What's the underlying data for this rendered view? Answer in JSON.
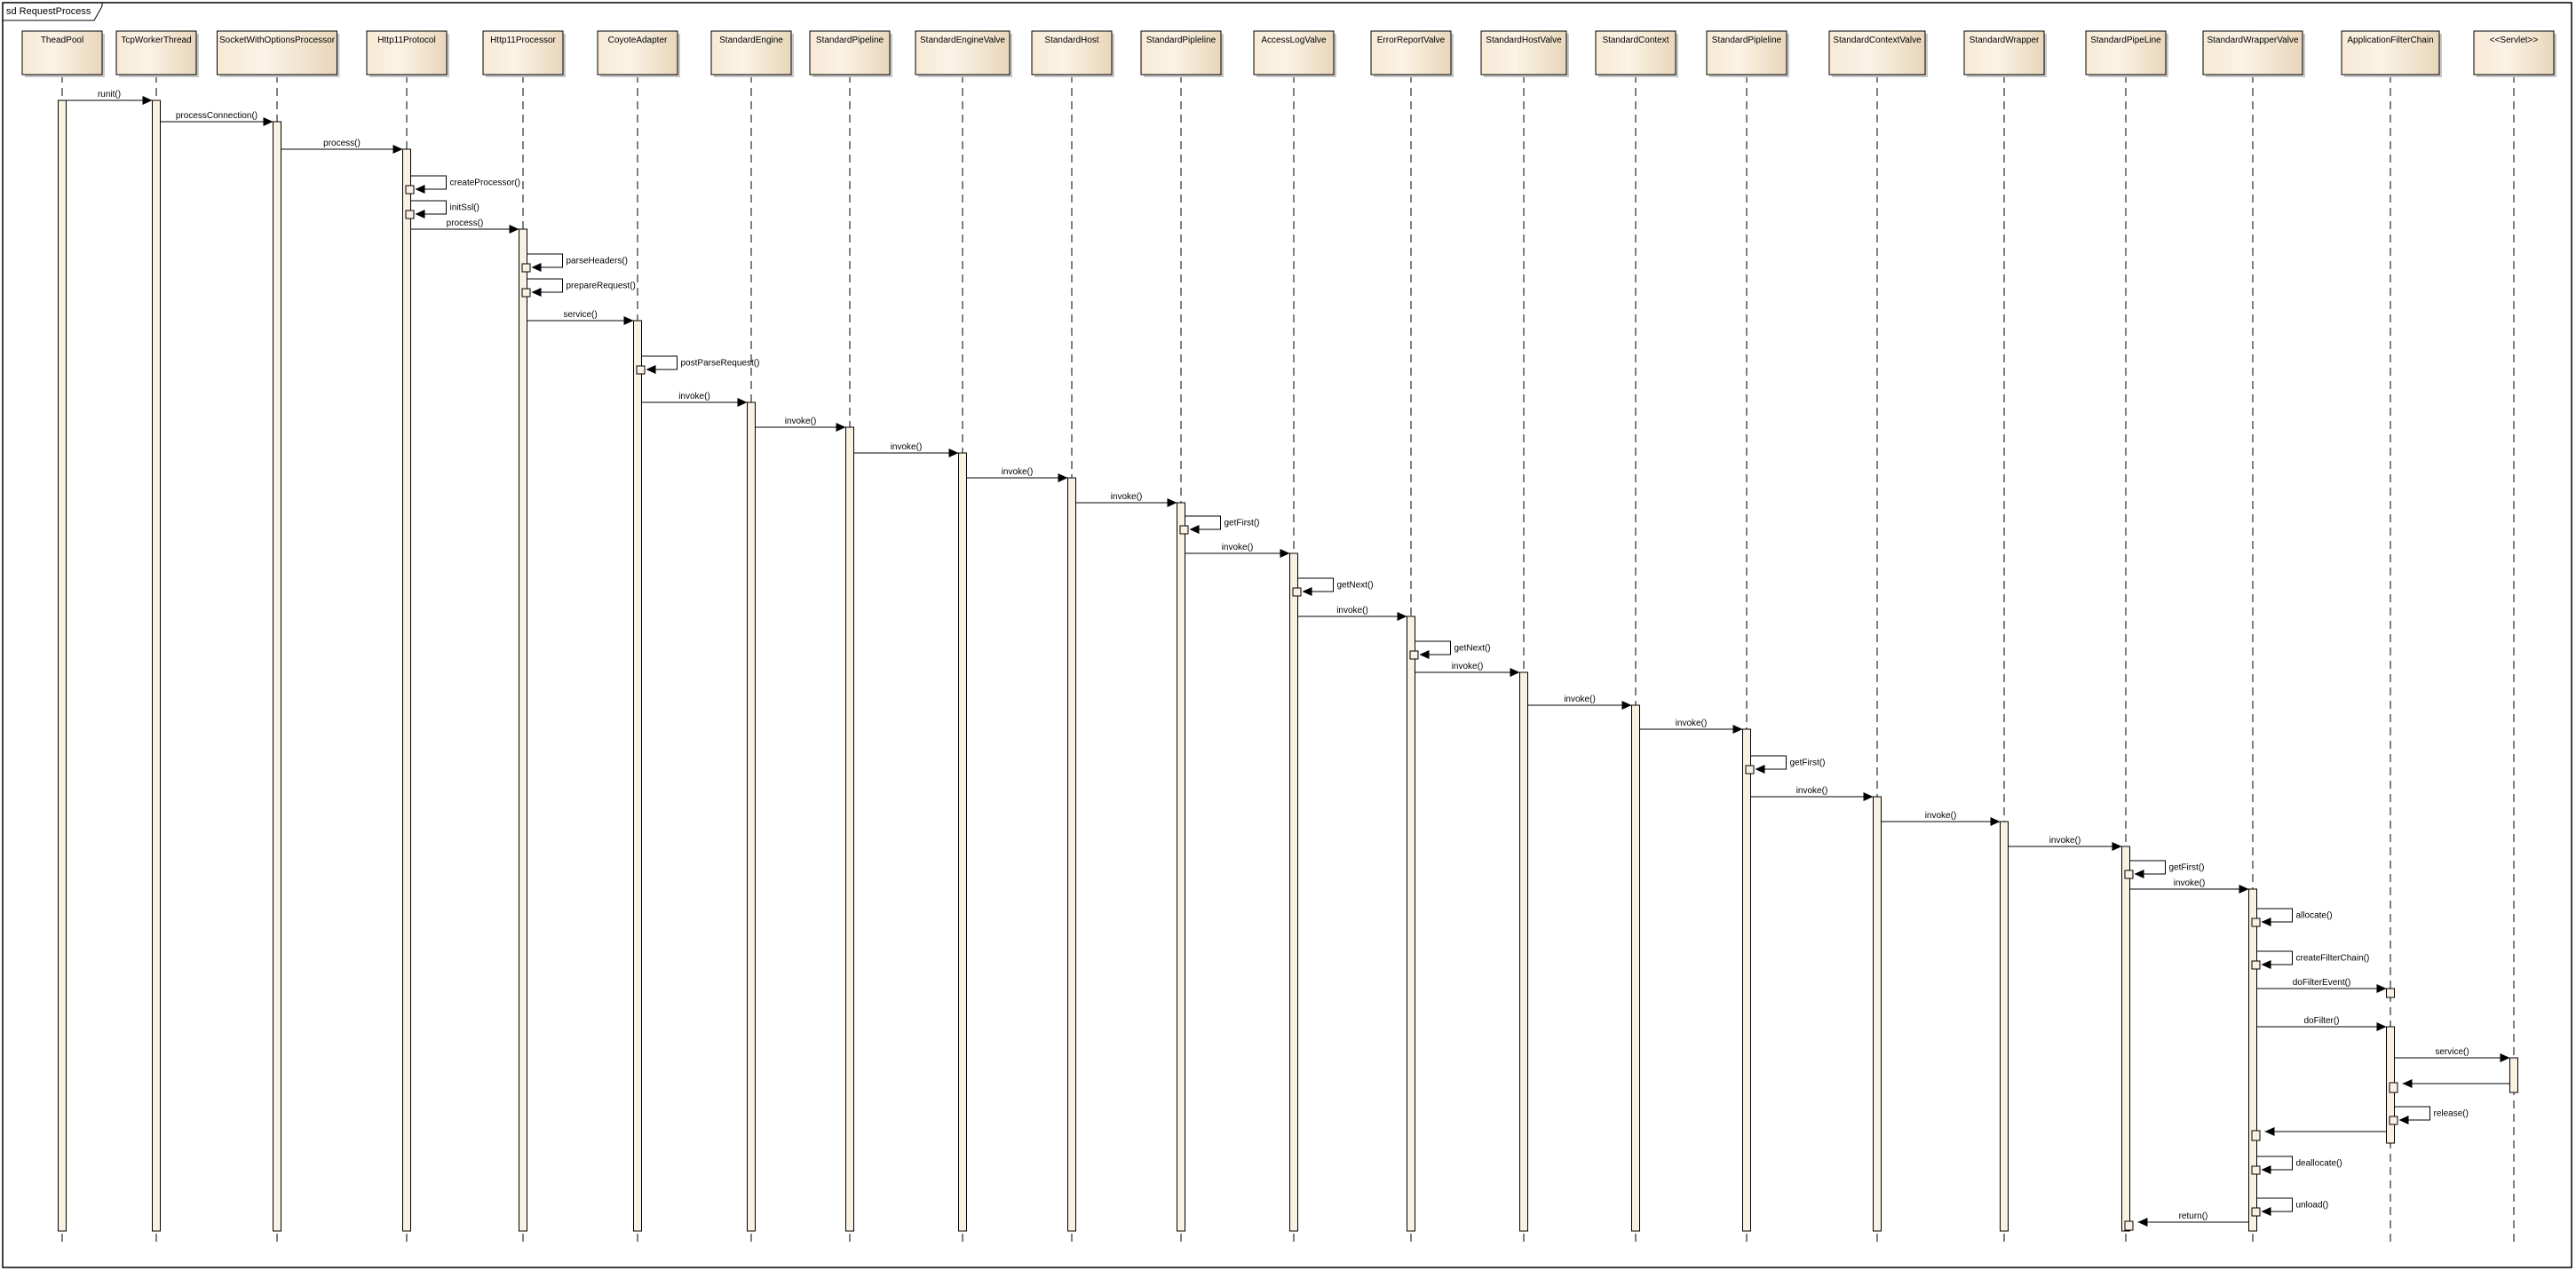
{
  "frame": {
    "title": "sd RequestProcess"
  },
  "colors": {
    "box_fill_light": "#fbf3e6",
    "box_fill_dark": "#ead9bf",
    "activation_fill": "#fbf1e3",
    "line": "#000000"
  },
  "lifelines": [
    "TheadPool",
    "TcpWorkerThread",
    "SocketWithOptionsProcessor",
    "Http11Protocol",
    "Http11Processor",
    "CoyoteAdapter",
    "StandardEngine",
    "StandardPipeline",
    "StandardEngineValve",
    "StandardHost",
    "StandardPipleline",
    "AccessLogValve",
    "ErrorReportValve",
    "StandardHostValve",
    "StandardContext",
    "StandardPipleline",
    "StandardContextValve",
    "StandardWrapper",
    "StandardPipeLine",
    "StandardWrapperValve",
    "ApplicationFilterChain",
    "<<Servlet>>"
  ],
  "messages": [
    {
      "from": 0,
      "to": 1,
      "label": "runit()"
    },
    {
      "from": 1,
      "to": 2,
      "label": "processConnection()"
    },
    {
      "from": 2,
      "to": 3,
      "label": "process()"
    },
    {
      "from": 3,
      "to": 3,
      "label": "createProcessor()"
    },
    {
      "from": 3,
      "to": 3,
      "label": "initSsl()"
    },
    {
      "from": 3,
      "to": 4,
      "label": "process()"
    },
    {
      "from": 4,
      "to": 4,
      "label": "parseHeaders()"
    },
    {
      "from": 4,
      "to": 4,
      "label": "prepareRequest()"
    },
    {
      "from": 4,
      "to": 5,
      "label": "service()"
    },
    {
      "from": 5,
      "to": 5,
      "label": "postParseRequest()"
    },
    {
      "from": 5,
      "to": 6,
      "label": "invoke()"
    },
    {
      "from": 6,
      "to": 7,
      "label": "invoke()"
    },
    {
      "from": 7,
      "to": 8,
      "label": "invoke()"
    },
    {
      "from": 8,
      "to": 9,
      "label": "invoke()"
    },
    {
      "from": 9,
      "to": 10,
      "label": "invoke()"
    },
    {
      "from": 10,
      "to": 10,
      "label": "getFirst()"
    },
    {
      "from": 10,
      "to": 11,
      "label": "invoke()"
    },
    {
      "from": 11,
      "to": 11,
      "label": "getNext()"
    },
    {
      "from": 11,
      "to": 12,
      "label": "invoke()"
    },
    {
      "from": 12,
      "to": 12,
      "label": "getNext()"
    },
    {
      "from": 12,
      "to": 13,
      "label": "invoke()"
    },
    {
      "from": 13,
      "to": 14,
      "label": "invoke()"
    },
    {
      "from": 14,
      "to": 15,
      "label": "invoke()"
    },
    {
      "from": 15,
      "to": 15,
      "label": "getFirst()"
    },
    {
      "from": 15,
      "to": 16,
      "label": "invoke()"
    },
    {
      "from": 16,
      "to": 17,
      "label": "invoke()"
    },
    {
      "from": 17,
      "to": 18,
      "label": "invoke()"
    },
    {
      "from": 18,
      "to": 18,
      "label": "getFirst()"
    },
    {
      "from": 18,
      "to": 19,
      "label": "invoke()"
    },
    {
      "from": 19,
      "to": 19,
      "label": "allocate()"
    },
    {
      "from": 19,
      "to": 19,
      "label": "createFilterChain()"
    },
    {
      "from": 19,
      "to": 20,
      "label": "doFilterEvent()"
    },
    {
      "from": 19,
      "to": 20,
      "label": "doFilter()"
    },
    {
      "from": 20,
      "to": 21,
      "label": "service()"
    },
    {
      "from": 21,
      "to": 20,
      "label": ""
    },
    {
      "from": 20,
      "to": 20,
      "label": "release()"
    },
    {
      "from": 20,
      "to": 19,
      "label": ""
    },
    {
      "from": 19,
      "to": 19,
      "label": "deallocate()"
    },
    {
      "from": 19,
      "to": 19,
      "label": "unload()"
    },
    {
      "from": 19,
      "to": 18,
      "label": "return()"
    }
  ]
}
